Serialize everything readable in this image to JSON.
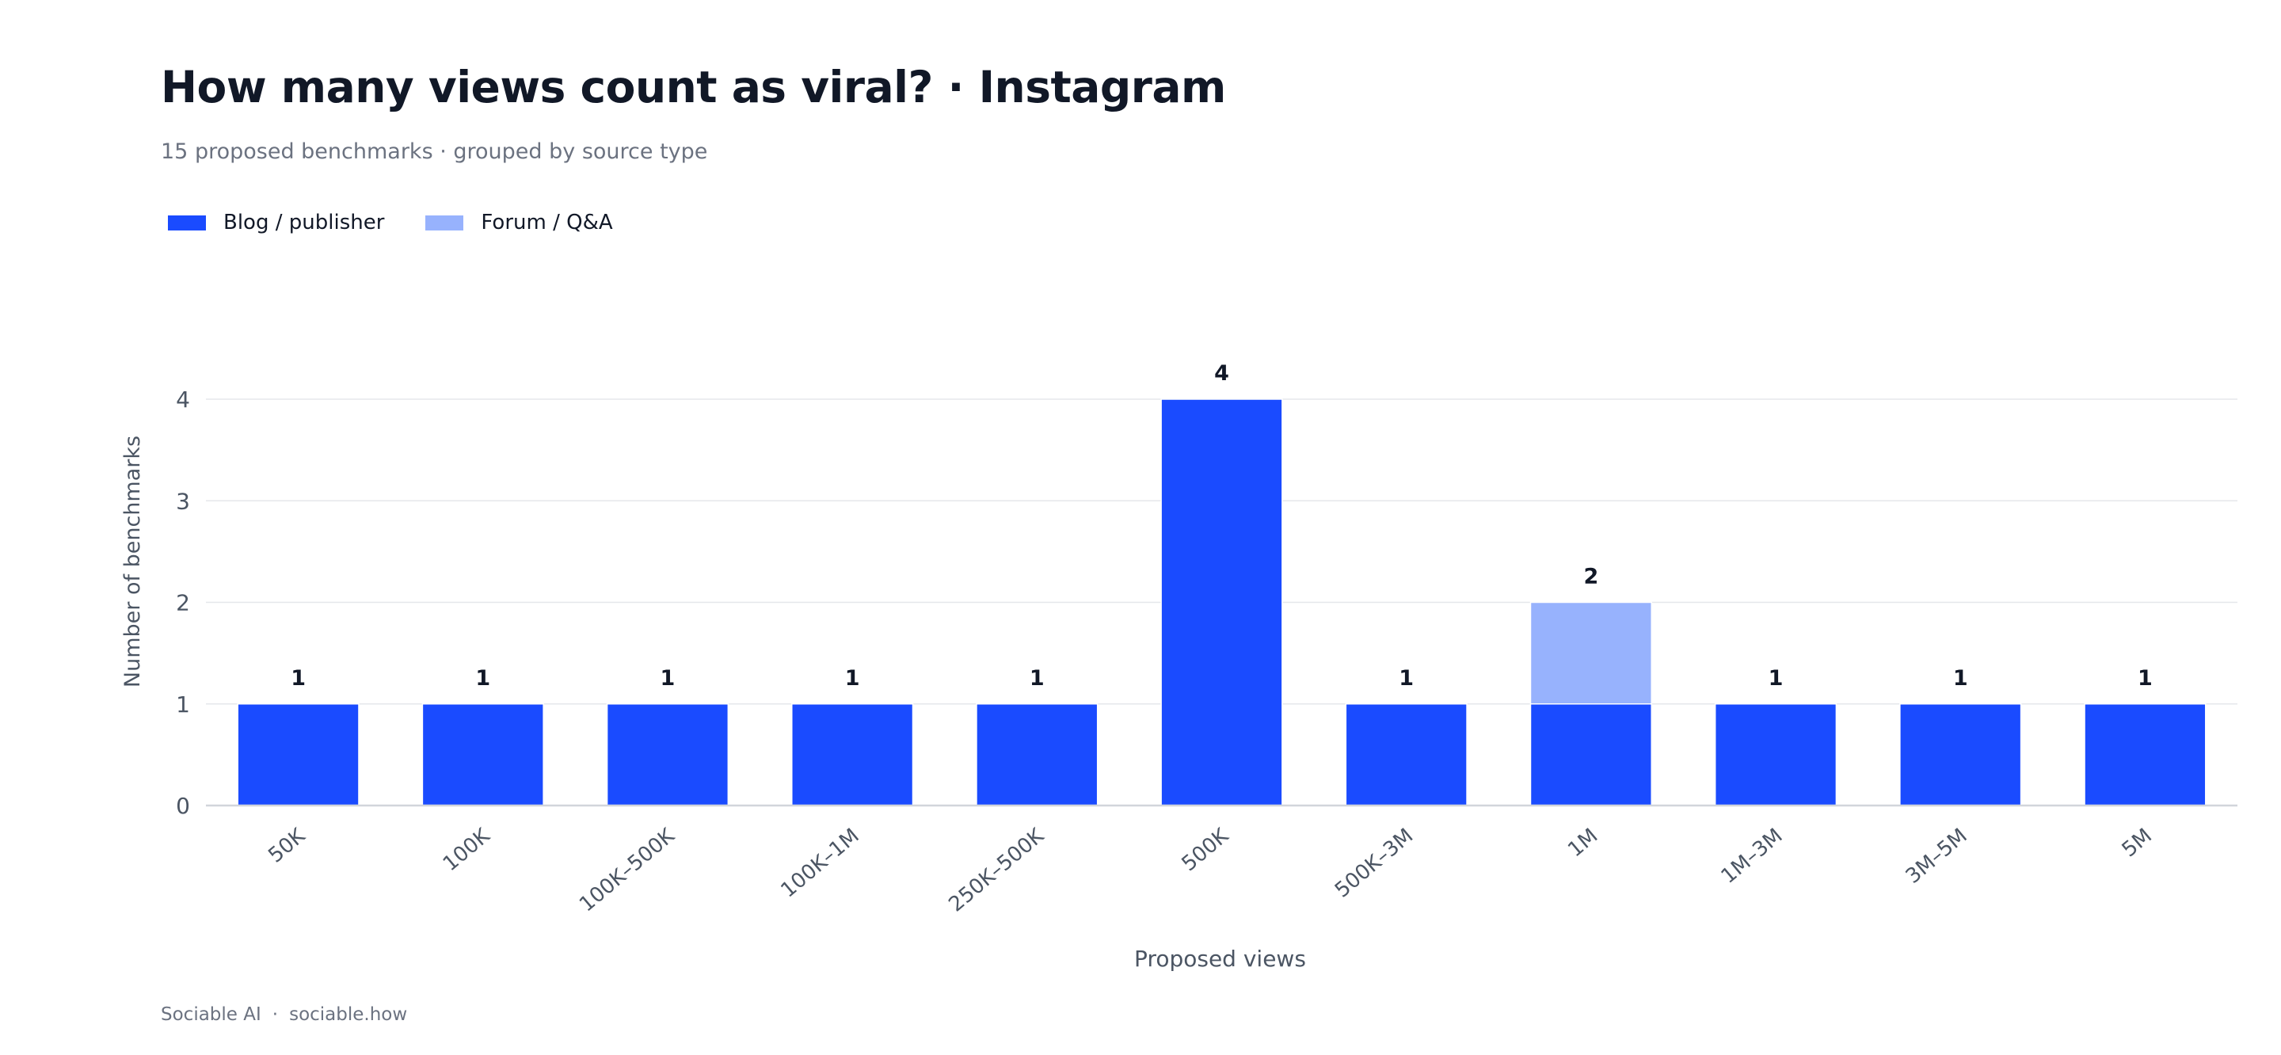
{
  "header": {
    "title": "How many views count as viral? · Instagram",
    "subtitle": "15 proposed benchmarks · grouped by source type"
  },
  "footer": {
    "brand": "Sociable AI",
    "separator": "·",
    "site": "sociable.how"
  },
  "colors": {
    "blog": "#1a4bff",
    "forum": "#97b2fd",
    "grid": "#e5e7eb",
    "axis": "#d1d5db",
    "tick_text": "#4b5563"
  },
  "chart_data": {
    "type": "bar",
    "stacked": true,
    "categories": [
      "50K",
      "100K",
      "100K–500K",
      "100K–1M",
      "250K–500K",
      "500K",
      "500K–3M",
      "1M",
      "1M–3M",
      "3M–5M",
      "5M"
    ],
    "series": [
      {
        "name": "Blog / publisher",
        "color": "#1a4bff",
        "values": [
          1,
          1,
          1,
          1,
          1,
          4,
          1,
          1,
          1,
          1,
          1
        ]
      },
      {
        "name": "Forum / Q&A",
        "color": "#97b2fd",
        "values": [
          0,
          0,
          0,
          0,
          0,
          0,
          0,
          1,
          0,
          0,
          0
        ]
      }
    ],
    "totals": [
      1,
      1,
      1,
      1,
      1,
      4,
      1,
      2,
      1,
      1,
      1
    ],
    "xlabel": "Proposed views",
    "ylabel": "Number of benchmarks",
    "ylim": [
      0,
      4
    ],
    "yticks": [
      0,
      1,
      2,
      3,
      4
    ],
    "grid": true,
    "legend_position": "top-left"
  }
}
